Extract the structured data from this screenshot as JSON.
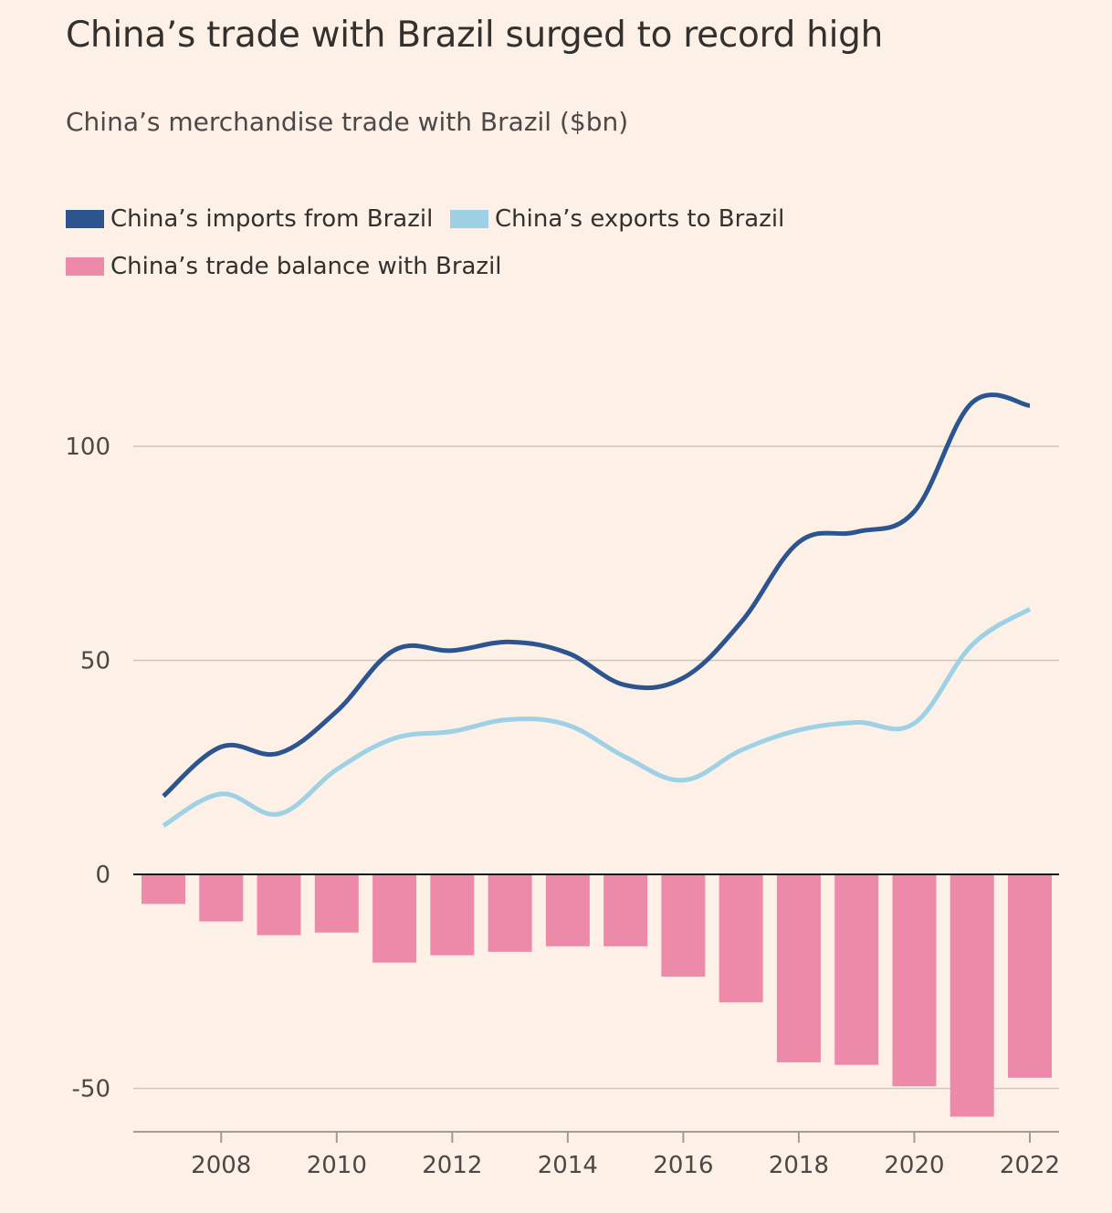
{
  "title": "China’s trade with Brazil surged to record high",
  "subtitle": "China’s merchandise trade with Brazil ($bn)",
  "legend": [
    {
      "label": "China’s imports from Brazil",
      "color": "#2c5590"
    },
    {
      "label": "China’s exports to Brazil",
      "color": "#9ed0e6"
    },
    {
      "label": "China’s trade balance with Brazil",
      "color": "#ee8aa9"
    }
  ],
  "chart_data": {
    "type": "line+bar",
    "title": "China’s trade with Brazil surged to record high",
    "subtitle": "China’s merchandise trade with Brazil ($bn)",
    "x": [
      2007,
      2008,
      2009,
      2010,
      2011,
      2012,
      2013,
      2014,
      2015,
      2016,
      2017,
      2018,
      2019,
      2020,
      2021,
      2022
    ],
    "xticks": [
      2008,
      2010,
      2012,
      2014,
      2016,
      2018,
      2020,
      2022
    ],
    "yticks": [
      100,
      50,
      0,
      -50
    ],
    "ylim": [
      -60,
      120
    ],
    "grid": true,
    "series": [
      {
        "name": "China’s imports from Brazil",
        "type": "line",
        "color": "#2c5590",
        "values": [
          18.3,
          29.8,
          28.3,
          38.1,
          52.4,
          52.3,
          54.3,
          51.7,
          44.2,
          45.9,
          58.9,
          77.6,
          80.0,
          84.8,
          110.2,
          109.5
        ]
      },
      {
        "name": "China’s exports to Brazil",
        "type": "line",
        "color": "#9ed0e6",
        "values": [
          11.4,
          18.8,
          14.1,
          24.5,
          31.8,
          33.4,
          36.2,
          34.9,
          27.4,
          22.0,
          29.0,
          33.7,
          35.5,
          35.3,
          53.6,
          62.0
        ]
      },
      {
        "name": "China’s trade balance with Brazil",
        "type": "bar",
        "color": "#ee8aa9",
        "values": [
          -6.9,
          -11.0,
          -14.2,
          -13.6,
          -20.6,
          -18.9,
          -18.1,
          -16.8,
          -16.8,
          -23.9,
          -29.9,
          -43.9,
          -44.5,
          -49.5,
          -56.6,
          -47.5
        ]
      }
    ]
  }
}
